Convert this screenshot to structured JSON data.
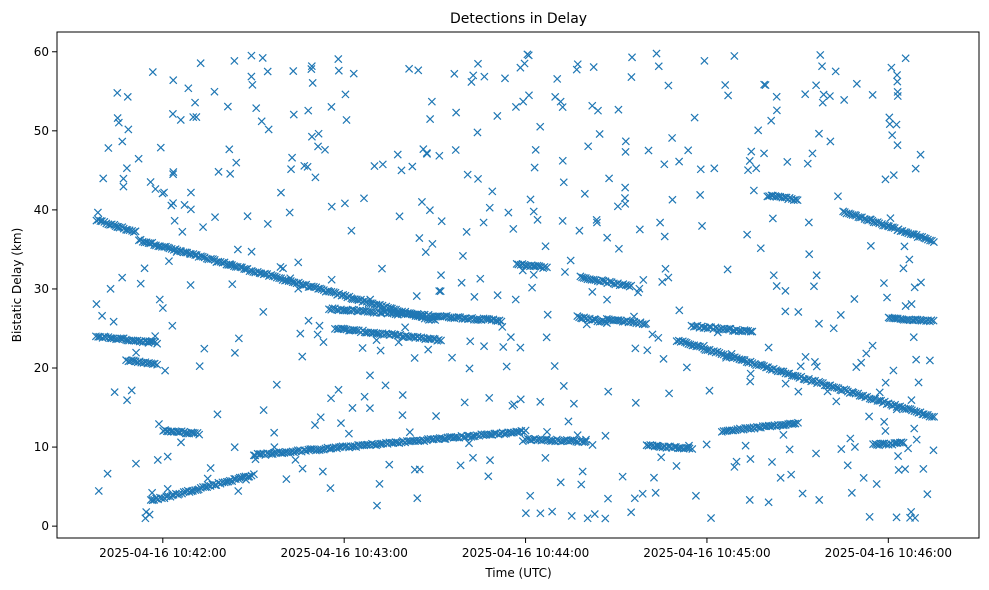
{
  "chart_data": {
    "type": "scatter",
    "title": "Detections in Delay",
    "xlabel": "Time (UTC)",
    "ylabel": "Bistatic Delay (km)",
    "x_ticks": [
      "2025-04-16 10:42:00",
      "2025-04-16 10:43:00",
      "2025-04-16 10:44:00",
      "2025-04-16 10:45:00",
      "2025-04-16 10:46:00"
    ],
    "y_ticks": [
      "0",
      "10",
      "20",
      "30",
      "40",
      "50",
      "60"
    ],
    "xlim": [
      "2025-04-16 10:41:25",
      "2025-04-16 10:46:30"
    ],
    "ylim": [
      -1.5,
      62.5
    ],
    "marker": "x",
    "color": "#1f77b4",
    "grid": false,
    "tracks": [
      {
        "t_start": "2025-04-16 10:41:38",
        "t_end": "2025-04-16 10:41:51",
        "delay_start": 38.7,
        "delay_end": 37.2
      },
      {
        "t_start": "2025-04-16 10:41:52",
        "t_end": "2025-04-16 10:43:30",
        "delay_start": 36.2,
        "delay_end": 26.0
      },
      {
        "t_start": "2025-04-16 10:42:55",
        "t_end": "2025-04-16 10:43:52",
        "delay_start": 27.5,
        "delay_end": 26.0
      },
      {
        "t_start": "2025-04-16 10:42:57",
        "t_end": "2025-04-16 10:43:32",
        "delay_start": 25.0,
        "delay_end": 23.5
      },
      {
        "t_start": "2025-04-16 10:41:38",
        "t_end": "2025-04-16 10:41:58",
        "delay_start": 24.0,
        "delay_end": 23.2
      },
      {
        "t_start": "2025-04-16 10:41:48",
        "t_end": "2025-04-16 10:41:58",
        "delay_start": 21.0,
        "delay_end": 20.5
      },
      {
        "t_start": "2025-04-16 10:41:56",
        "t_end": "2025-04-16 10:42:30",
        "delay_start": 3.2,
        "delay_end": 6.5
      },
      {
        "t_start": "2025-04-16 10:42:30",
        "t_end": "2025-04-16 10:44:00",
        "delay_start": 9.0,
        "delay_end": 12.0
      },
      {
        "t_start": "2025-04-16 10:42:00",
        "t_end": "2025-04-16 10:42:12",
        "delay_start": 12.1,
        "delay_end": 11.7
      },
      {
        "t_start": "2025-04-16 10:44:00",
        "t_end": "2025-04-16 10:44:20",
        "delay_start": 11.0,
        "delay_end": 10.7
      },
      {
        "t_start": "2025-04-16 10:44:17",
        "t_end": "2025-04-16 10:44:27",
        "delay_start": 26.5,
        "delay_end": 25.8
      },
      {
        "t_start": "2025-04-16 10:44:18",
        "t_end": "2025-04-16 10:44:35",
        "delay_start": 31.5,
        "delay_end": 30.3
      },
      {
        "t_start": "2025-04-16 10:44:27",
        "t_end": "2025-04-16 10:44:40",
        "delay_start": 26.2,
        "delay_end": 25.6
      },
      {
        "t_start": "2025-04-16 10:43:57",
        "t_end": "2025-04-16 10:44:07",
        "delay_start": 33.2,
        "delay_end": 32.7
      },
      {
        "t_start": "2025-04-16 10:44:40",
        "t_end": "2025-04-16 10:44:55",
        "delay_start": 10.2,
        "delay_end": 9.8
      },
      {
        "t_start": "2025-04-16 10:44:50",
        "t_end": "2025-04-16 10:46:15",
        "delay_start": 23.5,
        "delay_end": 13.8
      },
      {
        "t_start": "2025-04-16 10:44:55",
        "t_end": "2025-04-16 10:45:15",
        "delay_start": 25.3,
        "delay_end": 24.6
      },
      {
        "t_start": "2025-04-16 10:45:05",
        "t_end": "2025-04-16 10:45:30",
        "delay_start": 12.0,
        "delay_end": 13.0
      },
      {
        "t_start": "2025-04-16 10:45:20",
        "t_end": "2025-04-16 10:45:30",
        "delay_start": 41.8,
        "delay_end": 41.3
      },
      {
        "t_start": "2025-04-16 10:45:45",
        "t_end": "2025-04-16 10:46:15",
        "delay_start": 39.8,
        "delay_end": 36.0
      },
      {
        "t_start": "2025-04-16 10:46:00",
        "t_end": "2025-04-16 10:46:15",
        "delay_start": 26.3,
        "delay_end": 26.0
      },
      {
        "t_start": "2025-04-16 10:45:55",
        "t_end": "2025-04-16 10:46:05",
        "delay_start": 10.3,
        "delay_end": 10.5
      }
    ],
    "clutter": {
      "t_start": "2025-04-16 10:41:38",
      "t_end": "2025-04-16 10:46:15",
      "delay_min": 0.8,
      "delay_max": 59.8,
      "count": 520
    }
  }
}
